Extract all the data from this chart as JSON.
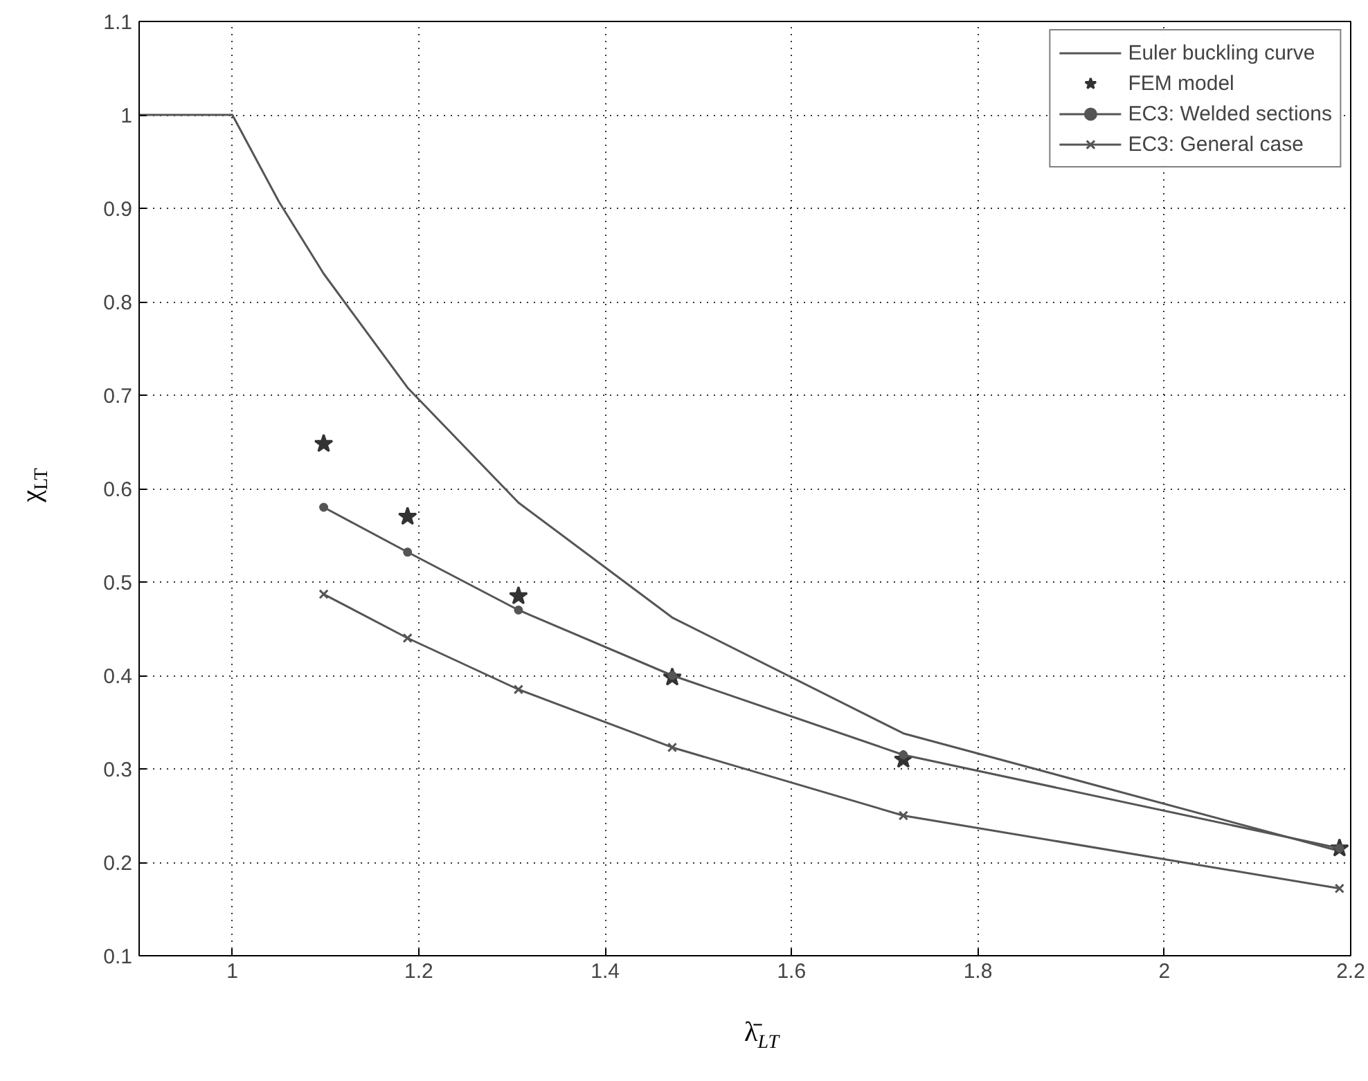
{
  "chart_data": {
    "type": "line",
    "xlabel": "λ̄$_{LT}$",
    "ylabel": "χ$_{LT}$",
    "xlim": [
      0.9,
      2.2
    ],
    "xticks": [
      1,
      1.2,
      1.4,
      1.6,
      1.8,
      2,
      2.2
    ],
    "ylim": [
      0.1,
      1.1
    ],
    "yticks": [
      0.1,
      0.2,
      0.3,
      0.4,
      0.5,
      0.6,
      0.7,
      0.8,
      0.9,
      1,
      1.1
    ],
    "grid": true,
    "legend": "top right",
    "series": [
      {
        "name": "Euler buckling curve",
        "type": "line",
        "marker": "none",
        "color": "#555555",
        "x": [
          0.9,
          1.0,
          1.05,
          1.098,
          1.188,
          1.307,
          1.472,
          1.72,
          2.188
        ],
        "values": [
          1.0,
          1.0,
          0.907,
          0.83,
          0.708,
          0.585,
          0.462,
          0.338,
          0.212
        ]
      },
      {
        "name": "FEM model",
        "type": "scatter",
        "marker": "star",
        "color": "#333333",
        "x": [
          1.098,
          1.188,
          1.307,
          1.472,
          1.72,
          2.188
        ],
        "values": [
          0.648,
          0.57,
          0.485,
          0.398,
          0.31,
          0.215
        ]
      },
      {
        "name": "EC3: Welded sections",
        "type": "line",
        "marker": "circle",
        "color": "#555555",
        "x": [
          1.098,
          1.188,
          1.307,
          1.472,
          1.72,
          2.188
        ],
        "values": [
          0.58,
          0.532,
          0.47,
          0.4,
          0.315,
          0.215
        ]
      },
      {
        "name": "EC3: General case",
        "type": "line",
        "marker": "cross",
        "color": "#555555",
        "x": [
          1.098,
          1.188,
          1.307,
          1.472,
          1.72,
          2.188
        ],
        "values": [
          0.487,
          0.44,
          0.385,
          0.323,
          0.25,
          0.172
        ]
      }
    ]
  }
}
